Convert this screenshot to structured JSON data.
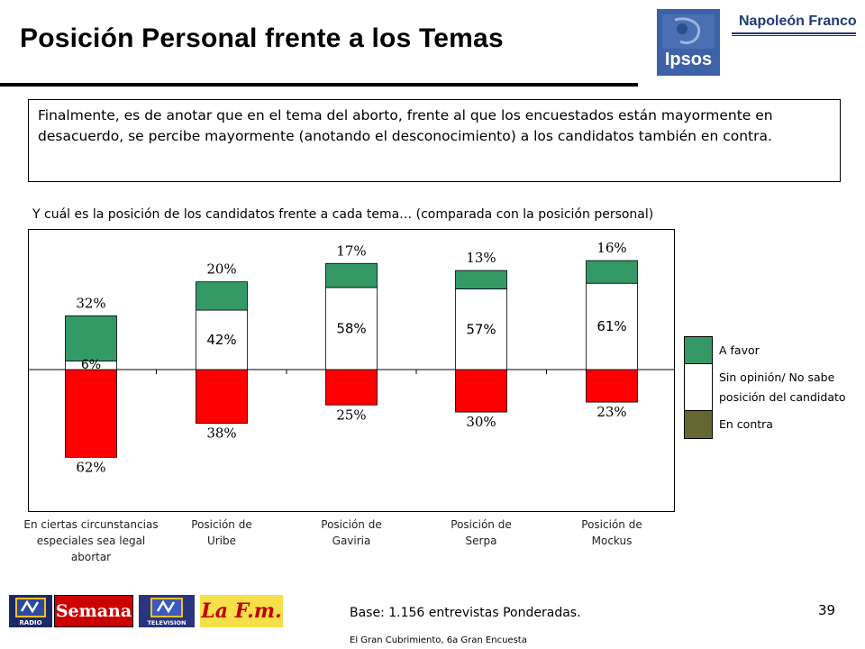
{
  "slide": {
    "title": "Posición Personal frente a los Temas",
    "intro": "Finalmente, es de anotar que en el tema del aborto, frente al que los encuestados están mayormente en desacuerdo, se percibe mayormente (anotando el desconocimiento) a los candidatos también en contra.",
    "subtitle": "Y cuál es la posición de los candidatos frente a cada tema… (comparada con la posición personal)",
    "base": "Base: 1.156 entrevistas Ponderadas.",
    "source": "El Gran Cubrimiento, 6a Gran Encuesta",
    "page_number": "39"
  },
  "logos": {
    "ipsos": "Ipsos",
    "napoleon": "Napoleón Franco",
    "rcn_radio": "RADIO",
    "semana": "Semana",
    "rcn_tv": "TELEVISION",
    "lafm": "La F.m."
  },
  "legend": {
    "a_favor": "A favor",
    "sin_opinion_1": "Sin opinión/ No sabe",
    "sin_opinion_2": "posición del candidato",
    "en_contra": "En contra"
  },
  "colors": {
    "a_favor": "#339966",
    "sin_opinion": "#ffffff",
    "en_contra": "#ff0000",
    "en_contra_legend": "#666633"
  },
  "chart_data": {
    "type": "bar",
    "stacked": "diverging",
    "categories": [
      [
        "En ciertas circunstancias",
        "especiales sea legal",
        "abortar"
      ],
      [
        "Posición de",
        "Uribe"
      ],
      [
        "Posición de",
        "Gaviria"
      ],
      [
        "Posición de",
        "Serpa"
      ],
      [
        "Posición de",
        "Mockus"
      ]
    ],
    "series": [
      {
        "name": "A favor",
        "values": [
          32,
          20,
          17,
          13,
          16
        ]
      },
      {
        "name": "Sin opinión/ No sabe posición del candidato",
        "values": [
          6,
          42,
          58,
          57,
          61
        ]
      },
      {
        "name": "En contra",
        "values": [
          62,
          38,
          25,
          30,
          23
        ]
      }
    ],
    "value_labels": {
      "a_favor": [
        "32%",
        "20%",
        "17%",
        "13%",
        "16%"
      ],
      "sin_opinion": [
        "6%",
        "42%",
        "58%",
        "57%",
        "61%"
      ],
      "en_contra": [
        "62%",
        "38%",
        "25%",
        "30%",
        "23%"
      ]
    },
    "legend_position": "right",
    "grid": false
  }
}
